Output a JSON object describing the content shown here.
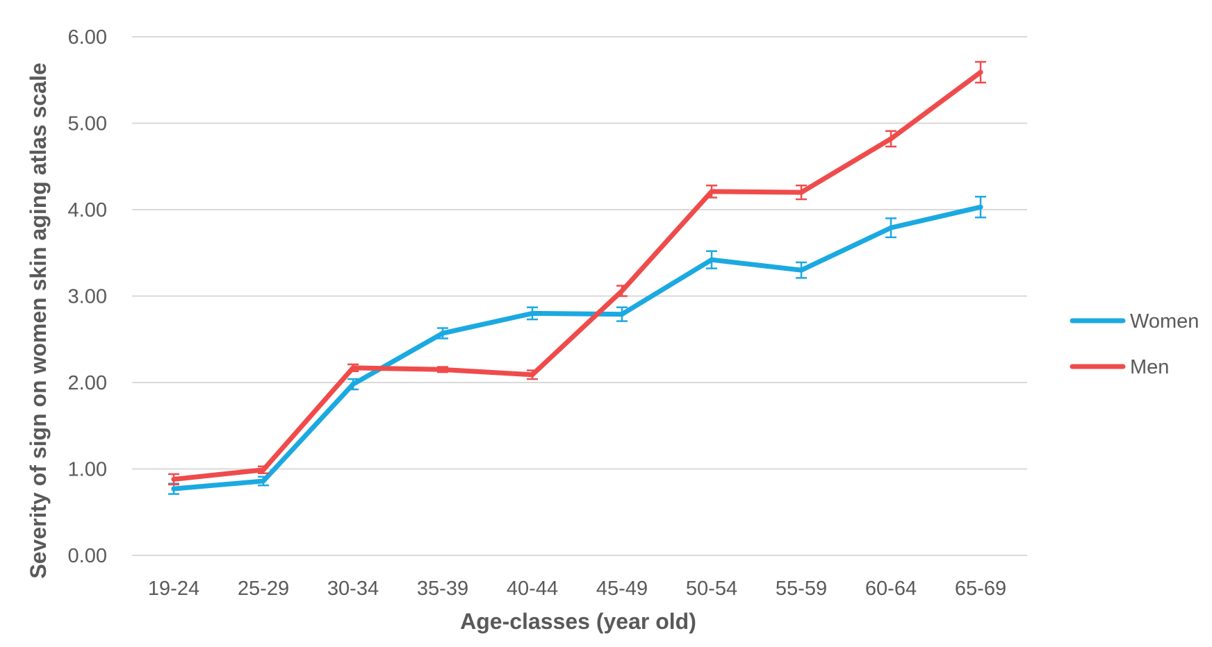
{
  "chart_data": {
    "type": "line",
    "title": "",
    "xlabel": "Age-classes (year old)",
    "ylabel": "Severity of sign on women skin aging atlas scale",
    "categories": [
      "19-24",
      "25-29",
      "30-34",
      "35-39",
      "40-44",
      "45-49",
      "50-54",
      "55-59",
      "60-64",
      "65-69"
    ],
    "ylim": [
      0,
      6
    ],
    "yticks": [
      "0.00",
      "1.00",
      "2.00",
      "3.00",
      "4.00",
      "5.00",
      "6.00"
    ],
    "grid": true,
    "legend_position": "right",
    "error_bars": true,
    "series": [
      {
        "name": "Women",
        "color": "#1ba9e1",
        "values": [
          0.77,
          0.86,
          1.98,
          2.57,
          2.8,
          2.79,
          3.42,
          3.3,
          3.79,
          4.03
        ],
        "errors": [
          0.06,
          0.05,
          0.06,
          0.06,
          0.07,
          0.08,
          0.1,
          0.09,
          0.11,
          0.12
        ]
      },
      {
        "name": "Men",
        "color": "#ef4b4b",
        "values": [
          0.88,
          0.99,
          2.17,
          2.15,
          2.09,
          3.06,
          4.21,
          4.2,
          4.82,
          5.59
        ],
        "errors": [
          0.06,
          0.04,
          0.04,
          0.03,
          0.05,
          0.06,
          0.07,
          0.08,
          0.09,
          0.12
        ]
      }
    ]
  }
}
